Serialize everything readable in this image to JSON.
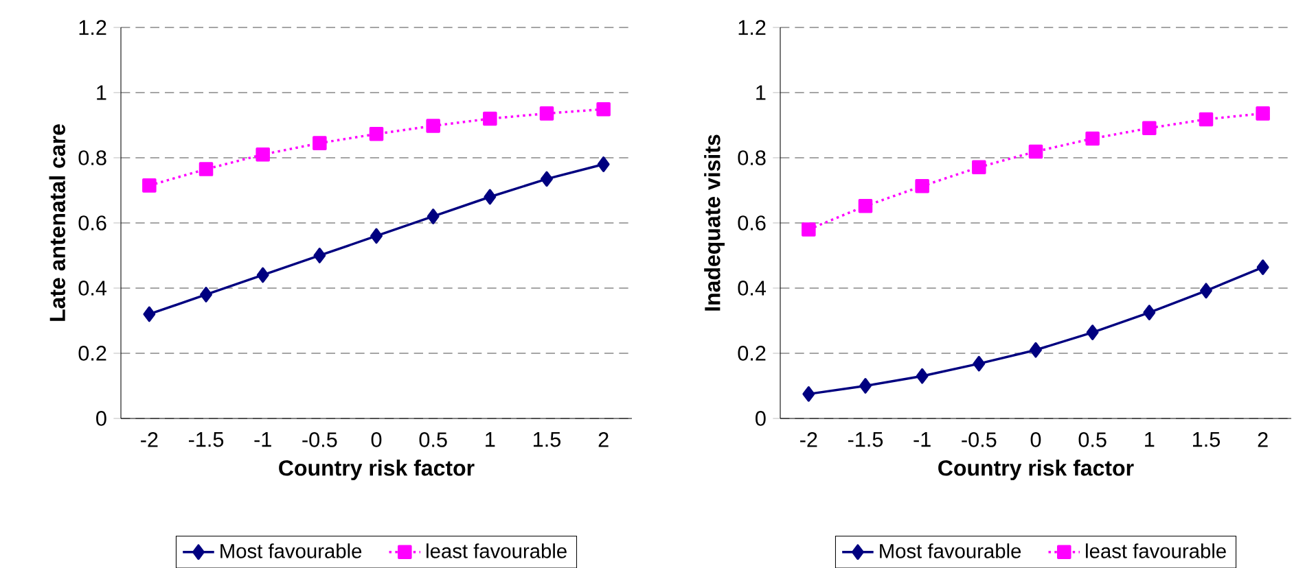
{
  "chart_data": [
    {
      "type": "line",
      "xlabel": "Country risk factor",
      "ylabel": "Late antenatal care",
      "categories": [
        "-2",
        "-1.5",
        "-1",
        "-0.5",
        "0",
        "0.5",
        "1",
        "1.5",
        "2"
      ],
      "ylim": [
        0,
        1.2
      ],
      "yticks": [
        0,
        0.2,
        0.4,
        0.6,
        0.8,
        1,
        1.2
      ],
      "grid": "y",
      "legend": "bottom",
      "series": [
        {
          "name": "Most favourable",
          "color": "#000080",
          "marker": "diamond",
          "line_style": "solid",
          "values": [
            0.32,
            0.38,
            0.44,
            0.5,
            0.56,
            0.62,
            0.68,
            0.735,
            0.78
          ]
        },
        {
          "name": "least favourable",
          "color": "#ff00ff",
          "marker": "square",
          "line_style": "dotted",
          "values": [
            0.715,
            0.765,
            0.81,
            0.845,
            0.873,
            0.898,
            0.92,
            0.936,
            0.949
          ]
        }
      ]
    },
    {
      "type": "line",
      "xlabel": "Country risk factor",
      "ylabel": "Inadequate visits",
      "categories": [
        "-2",
        "-1.5",
        "-1",
        "-0.5",
        "0",
        "0.5",
        "1",
        "1.5",
        "2"
      ],
      "ylim": [
        0,
        1.2
      ],
      "yticks": [
        0,
        0.2,
        0.4,
        0.6,
        0.8,
        1,
        1.2
      ],
      "grid": "y",
      "legend": "bottom",
      "series": [
        {
          "name": "Most favourable",
          "color": "#000080",
          "marker": "diamond",
          "line_style": "solid",
          "values": [
            0.075,
            0.1,
            0.13,
            0.168,
            0.21,
            0.264,
            0.325,
            0.392,
            0.464
          ]
        },
        {
          "name": "least favourable",
          "color": "#ff00ff",
          "marker": "square",
          "line_style": "dotted",
          "values": [
            0.58,
            0.652,
            0.713,
            0.771,
            0.819,
            0.859,
            0.891,
            0.918,
            0.936
          ]
        }
      ]
    }
  ]
}
